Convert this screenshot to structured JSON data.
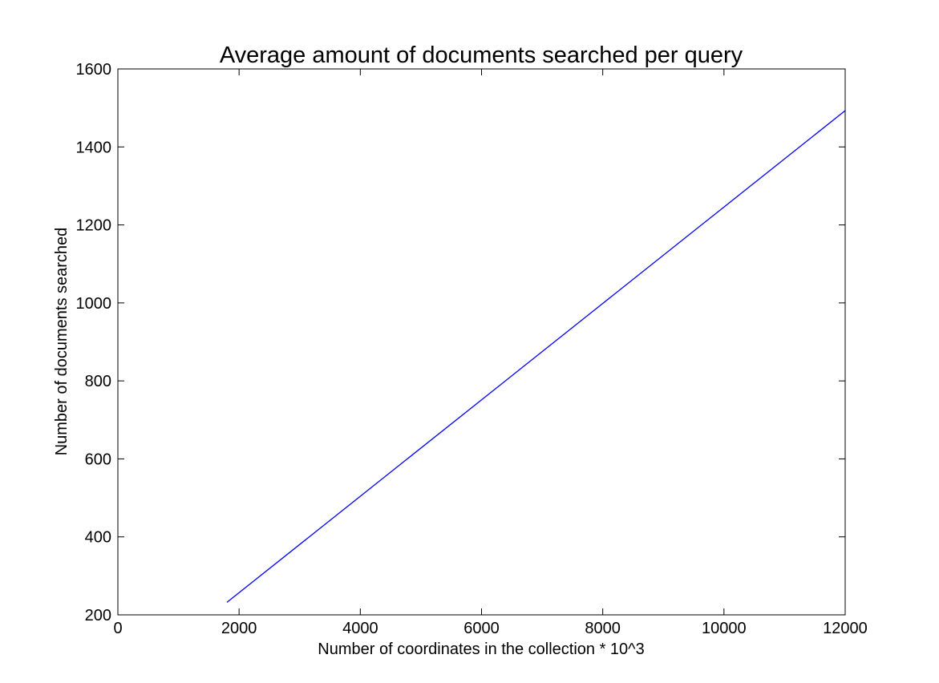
{
  "chart_data": {
    "type": "line",
    "title": "Average amount of documents searched per query",
    "xlabel": "Number of coordinates in the collection * 10^3",
    "ylabel": "Number of documents searched",
    "xlim": [
      0,
      12000
    ],
    "ylim": [
      200,
      1600
    ],
    "xticks": [
      0,
      2000,
      4000,
      6000,
      8000,
      10000,
      12000
    ],
    "yticks": [
      200,
      400,
      600,
      800,
      1000,
      1200,
      1400,
      1600
    ],
    "grid": false,
    "series": [
      {
        "color": "#0000ff",
        "x": [
          1800,
          12000
        ],
        "y": [
          232,
          1493
        ]
      }
    ]
  }
}
